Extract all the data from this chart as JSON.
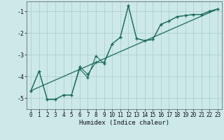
{
  "xlabel": "Humidex (Indice chaleur)",
  "bg_color": "#cce8e8",
  "grid_color": "#aacccc",
  "line_color": "#1a6b5a",
  "xlim": [
    -0.5,
    23.5
  ],
  "ylim": [
    -5.5,
    -0.55
  ],
  "yticks": [
    -5,
    -4,
    -3,
    -2,
    -1
  ],
  "xticks": [
    0,
    1,
    2,
    3,
    4,
    5,
    6,
    7,
    8,
    9,
    10,
    11,
    12,
    13,
    14,
    15,
    16,
    17,
    18,
    19,
    20,
    21,
    22,
    23
  ],
  "line1_x": [
    0,
    1,
    2,
    3,
    4,
    5,
    6,
    7,
    8,
    9,
    10,
    11,
    12,
    13,
    14,
    15,
    16,
    17,
    18,
    19,
    20,
    21,
    22,
    23
  ],
  "line1_y": [
    -4.65,
    -3.75,
    -5.05,
    -5.05,
    -4.85,
    -4.85,
    -3.65,
    -4.05,
    -3.05,
    -3.4,
    -2.5,
    -2.2,
    -0.75,
    -2.25,
    -2.35,
    -2.3,
    -1.6,
    -1.45,
    -1.25,
    -1.2,
    -1.15,
    -1.15,
    -1.0,
    -0.9
  ],
  "line2_x": [
    0,
    1,
    2,
    3,
    4,
    5,
    6,
    7,
    8,
    9,
    10,
    11,
    12,
    13,
    14,
    15,
    16,
    17,
    18,
    19,
    20,
    21,
    22,
    23
  ],
  "line2_y": [
    -4.65,
    -3.75,
    -5.05,
    -5.05,
    -4.85,
    -4.85,
    -3.55,
    -3.9,
    -3.35,
    -3.35,
    -2.5,
    -2.2,
    -0.75,
    -2.25,
    -2.35,
    -2.3,
    -1.6,
    -1.45,
    -1.25,
    -1.2,
    -1.15,
    -1.15,
    -1.0,
    -0.9
  ],
  "line3_x": [
    0,
    23
  ],
  "line3_y": [
    -4.65,
    -0.9
  ],
  "tick_fontsize": 5.5,
  "xlabel_fontsize": 6.5
}
